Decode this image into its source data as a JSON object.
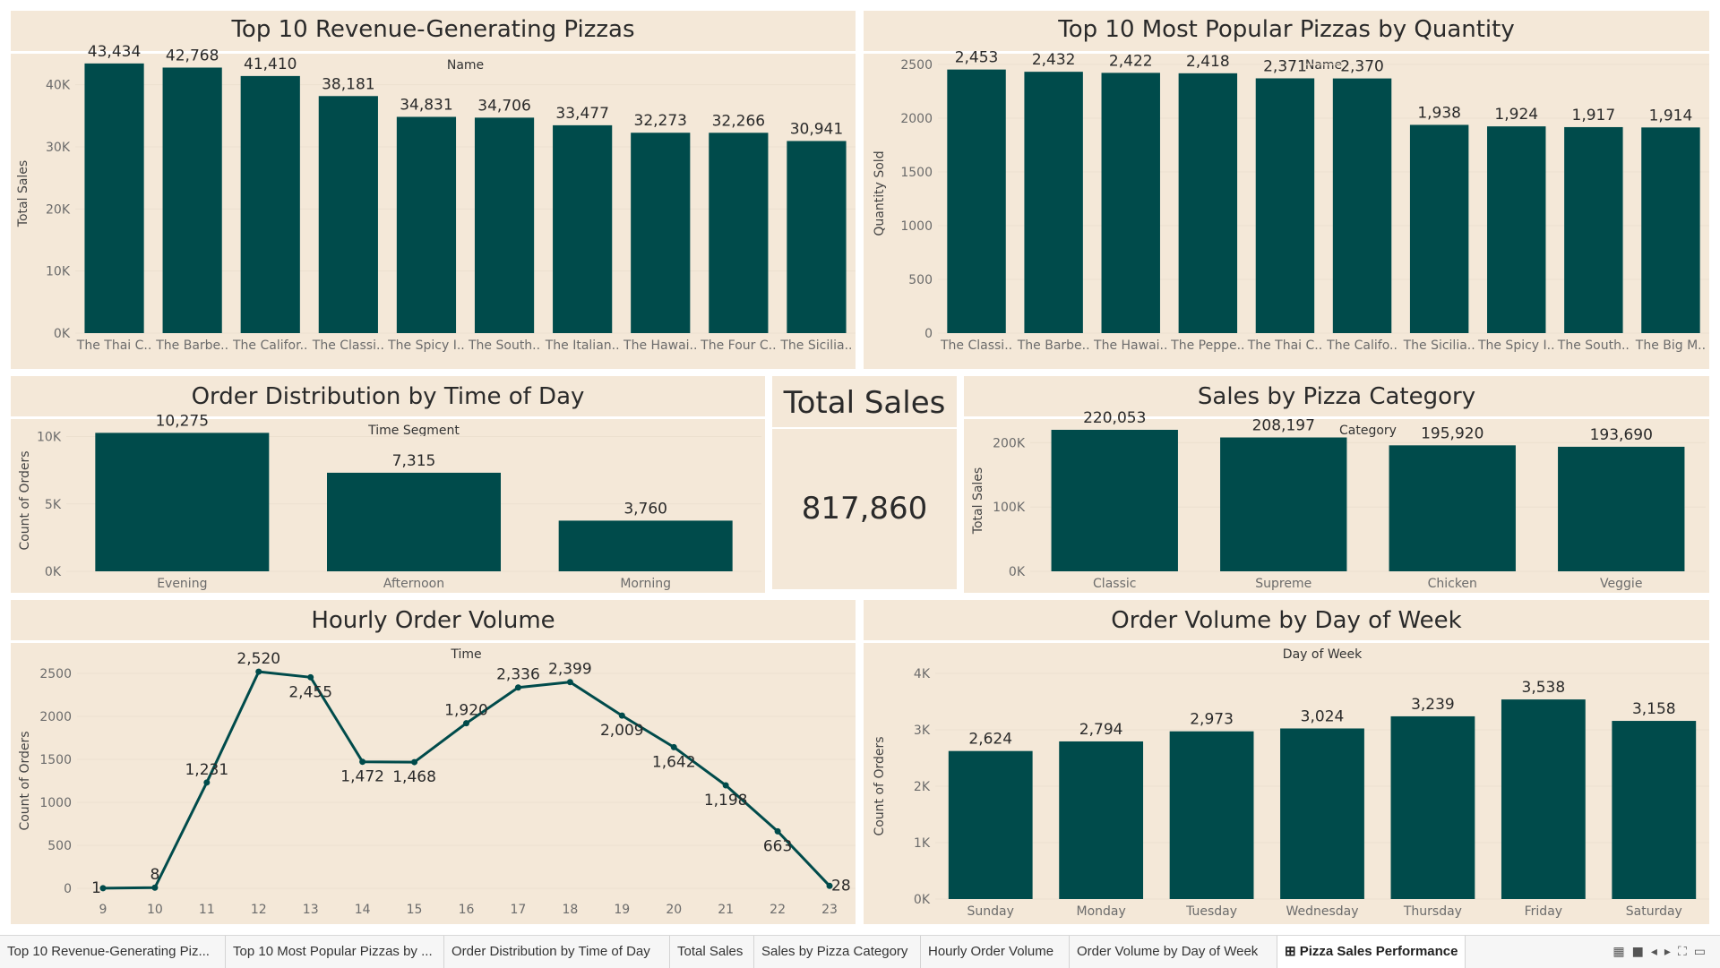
{
  "colors": {
    "bar": "#004b4b",
    "panel": "#f4e8d8",
    "text": "#2a2a2a",
    "muted": "#6b6b6b",
    "grid": "#ece0cf"
  },
  "charts": {
    "revenue": {
      "title": "Top 10 Revenue-Generating Pizzas",
      "chart_data": {
        "type": "bar",
        "header": "Name",
        "ylabel": "Total Sales",
        "ylim": [
          0,
          45000
        ],
        "yticks": [
          0,
          10000,
          20000,
          30000,
          40000
        ],
        "ytick_labels": [
          "0K",
          "10K",
          "20K",
          "30K",
          "40K"
        ],
        "categories": [
          "The Thai C..",
          "The Barbe..",
          "The Califor..",
          "The Classi..",
          "The Spicy I..",
          "The South..",
          "The Italian..",
          "The Hawai..",
          "The Four C..",
          "The Sicilia.."
        ],
        "values": [
          43434,
          42768,
          41410,
          38181,
          34831,
          34706,
          33477,
          32273,
          32266,
          30941
        ],
        "labels": [
          "43,434",
          "42,768",
          "41,410",
          "38,181",
          "34,831",
          "34,706",
          "33,477",
          "32,273",
          "32,266",
          "30,941"
        ]
      }
    },
    "quantity": {
      "title": "Top 10 Most Popular Pizzas by Quantity",
      "chart_data": {
        "type": "bar",
        "header": "Name",
        "ylabel": "Quantity Sold",
        "ylim": [
          0,
          2600
        ],
        "yticks": [
          0,
          500,
          1000,
          1500,
          2000,
          2500
        ],
        "ytick_labels": [
          "0",
          "500",
          "1000",
          "1500",
          "2000",
          "2500"
        ],
        "categories": [
          "The Classi..",
          "The Barbe..",
          "The Hawai..",
          "The Peppe..",
          "The Thai C..",
          "The Califo..",
          "The Sicilia..",
          "The Spicy I..",
          "The South..",
          "The Big M.."
        ],
        "values": [
          2453,
          2432,
          2422,
          2418,
          2371,
          2370,
          1938,
          1924,
          1917,
          1914
        ],
        "labels": [
          "2,453",
          "2,432",
          "2,422",
          "2,418",
          "2,371",
          "2,370",
          "1,938",
          "1,924",
          "1,917",
          "1,914"
        ]
      }
    },
    "timeofday": {
      "title": "Order Distribution by Time of Day",
      "chart_data": {
        "type": "bar",
        "header": "Time Segment",
        "ylabel": "Count of Orders",
        "ylim": [
          0,
          10500
        ],
        "yticks": [
          0,
          5000,
          10000
        ],
        "ytick_labels": [
          "0K",
          "5K",
          "10K"
        ],
        "categories": [
          "Evening",
          "Afternoon",
          "Morning"
        ],
        "values": [
          10275,
          7315,
          3760
        ],
        "labels": [
          "10,275",
          "7,315",
          "3,760"
        ]
      }
    },
    "total": {
      "title": "Total Sales",
      "value": "817,860"
    },
    "category": {
      "title": "Sales by Pizza Category",
      "chart_data": {
        "type": "bar",
        "header": "Category",
        "ylabel": "Total Sales",
        "ylim": [
          0,
          220053
        ],
        "yticks": [
          0,
          100000,
          200000
        ],
        "ytick_labels": [
          "0K",
          "100K",
          "200K"
        ],
        "categories": [
          "Classic",
          "Supreme",
          "Chicken",
          "Veggie"
        ],
        "values": [
          220053,
          208197,
          195920,
          193690
        ],
        "labels": [
          "220,053",
          "208,197",
          "195,920",
          "193,690"
        ]
      }
    },
    "hourly": {
      "title": "Hourly Order Volume",
      "chart_data": {
        "type": "line",
        "header": "Time",
        "ylabel": "Count of Orders",
        "ylim": [
          0,
          2500
        ],
        "yticks": [
          0,
          500,
          1000,
          1500,
          2000,
          2500
        ],
        "ytick_labels": [
          "0",
          "500",
          "1000",
          "1500",
          "2000",
          "2500"
        ],
        "x": [
          9,
          10,
          11,
          12,
          13,
          14,
          15,
          16,
          17,
          18,
          19,
          20,
          21,
          22,
          23
        ],
        "x_labels": [
          "9",
          "10",
          "11",
          "12",
          "13",
          "14",
          "15",
          "16",
          "17",
          "18",
          "19",
          "20",
          "21",
          "22",
          "23"
        ],
        "values": [
          1,
          8,
          1231,
          2520,
          2455,
          1472,
          1468,
          1920,
          2336,
          2399,
          2009,
          1642,
          1198,
          663,
          28
        ],
        "labels": [
          "1",
          "8",
          "1,231",
          "2,520",
          "2,455",
          "1,472",
          "1,468",
          "1,920",
          "2,336",
          "2,399",
          "2,009",
          "1,642",
          "1,198",
          "663",
          "28"
        ]
      }
    },
    "weekday": {
      "title": "Order Volume by Day of Week",
      "chart_data": {
        "type": "bar",
        "header": "Day of Week",
        "ylabel": "Count of Orders",
        "ylim": [
          0,
          4000
        ],
        "yticks": [
          0,
          1000,
          2000,
          3000,
          4000
        ],
        "ytick_labels": [
          "0K",
          "1K",
          "2K",
          "3K",
          "4K"
        ],
        "categories": [
          "Sunday",
          "Monday",
          "Tuesday",
          "Wednesday",
          "Thursday",
          "Friday",
          "Saturday"
        ],
        "values": [
          2624,
          2794,
          2973,
          3024,
          3239,
          3538,
          3158
        ],
        "labels": [
          "2,624",
          "2,794",
          "2,973",
          "3,024",
          "3,239",
          "3,538",
          "3,158"
        ]
      }
    }
  },
  "tabs": [
    {
      "label": "Top 10 Revenue-Generating Piz...",
      "active": false
    },
    {
      "label": "Top 10 Most Popular Pizzas by ...",
      "active": false
    },
    {
      "label": "Order Distribution by Time of Day",
      "active": false
    },
    {
      "label": "Total Sales",
      "active": false
    },
    {
      "label": "Sales by Pizza Category",
      "active": false
    },
    {
      "label": "Hourly Order Volume",
      "active": false
    },
    {
      "label": "Order Volume by Day of Week",
      "active": false
    },
    {
      "label": "⊞ Pizza Sales Performance",
      "active": true
    }
  ],
  "nav_icons": [
    "grid-view-icon",
    "filmstrip-icon",
    "prev-icon",
    "next-icon",
    "fullscreen-icon",
    "present-icon"
  ]
}
